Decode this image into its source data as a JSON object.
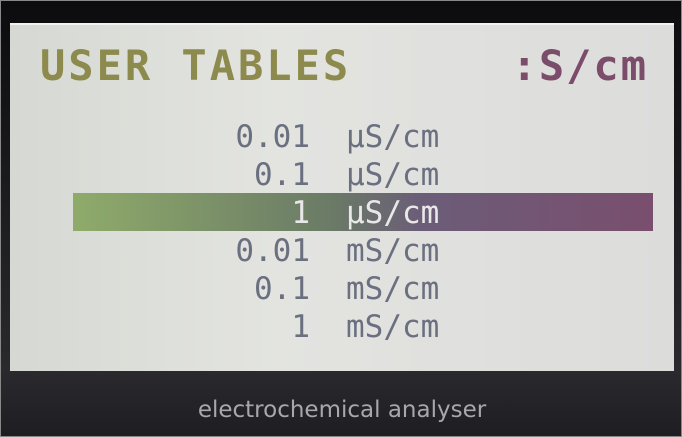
{
  "screen": {
    "title": "USER TABLES",
    "unit": ":S/cm",
    "selected": 2,
    "items": [
      {
        "value": "0.01",
        "unit": "µS/cm"
      },
      {
        "value": "0.1",
        "unit": "µS/cm"
      },
      {
        "value": "1",
        "unit": "µS/cm"
      },
      {
        "value": "0.01",
        "unit": "mS/cm"
      },
      {
        "value": "0.1",
        "unit": "mS/cm"
      },
      {
        "value": "1",
        "unit": "mS/cm"
      }
    ],
    "footer": "electrochemical analyser"
  }
}
